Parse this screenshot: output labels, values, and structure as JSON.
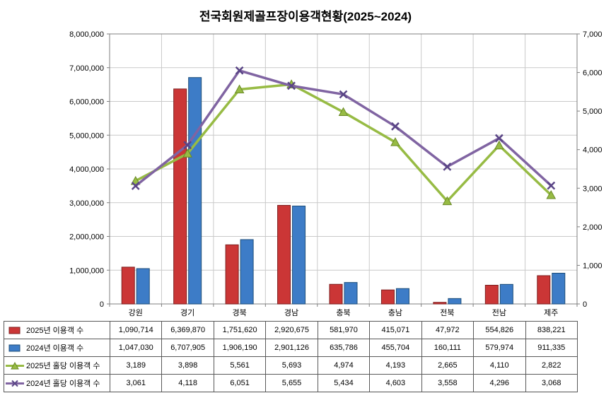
{
  "title": "전국회원제골프장이용객현황(2025~2024)",
  "chart_data": {
    "type": "combo-bar-line",
    "title": "전국회원제골프장이용객현황(2025~2024)",
    "categories": [
      "강원",
      "경기",
      "경북",
      "경남",
      "충북",
      "충남",
      "전북",
      "전남",
      "제주"
    ],
    "bar_series": [
      {
        "type": "bar",
        "name": "2025년 이용객 수",
        "axis": "left",
        "color": "#cb3636",
        "border": "#7d1f1f",
        "values": [
          1090714,
          6369870,
          1751620,
          2920675,
          581970,
          415071,
          47972,
          554826,
          838221
        ]
      },
      {
        "type": "bar",
        "name": "2024년 이용객 수",
        "axis": "left",
        "color": "#3d7cc7",
        "border": "#1d4e79",
        "values": [
          1047030,
          6707905,
          1906190,
          2901126,
          635786,
          455704,
          160111,
          579974,
          911335
        ]
      }
    ],
    "line_series": [
      {
        "type": "line",
        "name": "2025년 홀당 이용객 수",
        "axis": "right",
        "color": "#97bb44",
        "marker": "triangle",
        "marker_border": "#6a8a26",
        "values": [
          3189,
          3898,
          5561,
          5693,
          4974,
          4193,
          2665,
          4110,
          2822
        ]
      },
      {
        "type": "line",
        "name": "2024년 홀당 이용객 수",
        "axis": "right",
        "color": "#8064a2",
        "marker": "x",
        "marker_border": "#5a4586",
        "values": [
          3061,
          4118,
          6051,
          5655,
          5434,
          4603,
          3558,
          4296,
          3068
        ]
      }
    ],
    "left_axis": {
      "min": 0,
      "max": 8000000,
      "step": 1000000,
      "labels": [
        "0",
        "1,000,000",
        "2,000,000",
        "3,000,000",
        "4,000,000",
        "5,000,000",
        "6,000,000",
        "7,000,000",
        "8,000,000"
      ]
    },
    "right_axis": {
      "min": 0,
      "max": 7000,
      "step": 1000,
      "labels": [
        "0",
        "1,000",
        "2,000",
        "3,000",
        "4,000",
        "5,000",
        "6,000",
        "7,000"
      ]
    },
    "grid": true,
    "legend_position": "data-table-left-column",
    "colors": {
      "gridline": "#c9c9c9",
      "plot_border": "#7f7f7f",
      "axis_text": "#000000",
      "table_border": "#595959"
    }
  }
}
